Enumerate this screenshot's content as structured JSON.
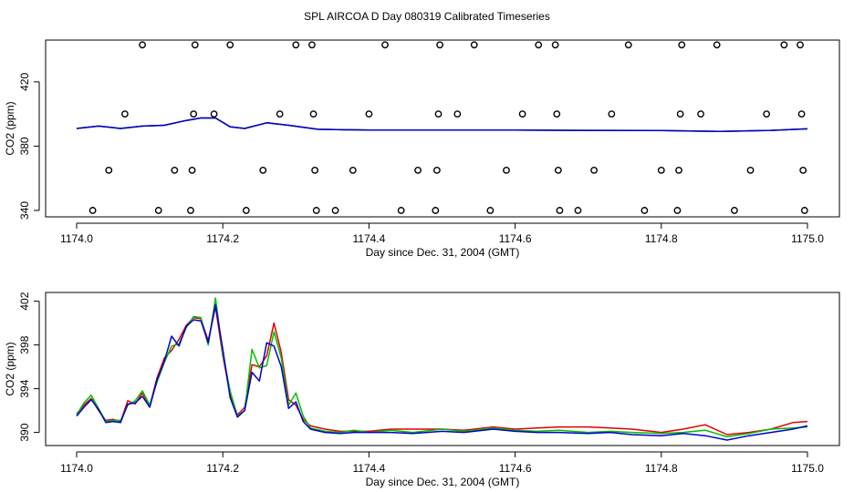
{
  "title": "SPL AIRCOA D  Day 080319  Calibrated Timeseries",
  "chart_data": [
    {
      "type": "scatter+line",
      "xlabel": "Day since Dec. 31, 2004 (GMT)",
      "ylabel": "CO2 (ppm)",
      "xlim": [
        1174.0,
        1175.0
      ],
      "ylim": [
        336,
        446
      ],
      "x_ticks": [
        1174.0,
        1174.2,
        1174.4,
        1174.6,
        1174.8,
        1175.0
      ],
      "x_tick_labels": [
        "1174.0",
        "1174.2",
        "1174.4",
        "1174.6",
        "1174.8",
        "1175.0"
      ],
      "y_ticks": [
        340,
        380,
        420
      ],
      "y_tick_labels": [
        "340",
        "380",
        "420"
      ],
      "calibration_points": [
        {
          "x": 1174.022,
          "y": 340
        },
        {
          "x": 1174.044,
          "y": 365
        },
        {
          "x": 1174.066,
          "y": 400
        },
        {
          "x": 1174.09,
          "y": 443
        },
        {
          "x": 1174.112,
          "y": 340
        },
        {
          "x": 1174.134,
          "y": 365
        },
        {
          "x": 1174.156,
          "y": 340
        },
        {
          "x": 1174.158,
          "y": 365
        },
        {
          "x": 1174.16,
          "y": 400
        },
        {
          "x": 1174.162,
          "y": 443
        },
        {
          "x": 1174.188,
          "y": 400
        },
        {
          "x": 1174.21,
          "y": 443
        },
        {
          "x": 1174.232,
          "y": 340
        },
        {
          "x": 1174.255,
          "y": 365
        },
        {
          "x": 1174.278,
          "y": 400
        },
        {
          "x": 1174.3,
          "y": 443
        },
        {
          "x": 1174.322,
          "y": 443
        },
        {
          "x": 1174.324,
          "y": 400
        },
        {
          "x": 1174.326,
          "y": 365
        },
        {
          "x": 1174.328,
          "y": 340
        },
        {
          "x": 1174.354,
          "y": 340
        },
        {
          "x": 1174.378,
          "y": 365
        },
        {
          "x": 1174.4,
          "y": 400
        },
        {
          "x": 1174.422,
          "y": 443
        },
        {
          "x": 1174.444,
          "y": 340
        },
        {
          "x": 1174.467,
          "y": 365
        },
        {
          "x": 1174.491,
          "y": 340
        },
        {
          "x": 1174.493,
          "y": 365
        },
        {
          "x": 1174.495,
          "y": 400
        },
        {
          "x": 1174.497,
          "y": 443
        },
        {
          "x": 1174.521,
          "y": 400
        },
        {
          "x": 1174.544,
          "y": 443
        },
        {
          "x": 1174.566,
          "y": 340
        },
        {
          "x": 1174.588,
          "y": 365
        },
        {
          "x": 1174.61,
          "y": 400
        },
        {
          "x": 1174.632,
          "y": 443
        },
        {
          "x": 1174.655,
          "y": 443
        },
        {
          "x": 1174.657,
          "y": 400
        },
        {
          "x": 1174.659,
          "y": 365
        },
        {
          "x": 1174.661,
          "y": 340
        },
        {
          "x": 1174.686,
          "y": 340
        },
        {
          "x": 1174.708,
          "y": 365
        },
        {
          "x": 1174.732,
          "y": 400
        },
        {
          "x": 1174.755,
          "y": 443
        },
        {
          "x": 1174.777,
          "y": 340
        },
        {
          "x": 1174.8,
          "y": 365
        },
        {
          "x": 1174.822,
          "y": 340
        },
        {
          "x": 1174.824,
          "y": 365
        },
        {
          "x": 1174.826,
          "y": 400
        },
        {
          "x": 1174.828,
          "y": 443
        },
        {
          "x": 1174.854,
          "y": 400
        },
        {
          "x": 1174.876,
          "y": 443
        },
        {
          "x": 1174.9,
          "y": 340
        },
        {
          "x": 1174.922,
          "y": 365
        },
        {
          "x": 1174.944,
          "y": 400
        },
        {
          "x": 1174.968,
          "y": 443
        },
        {
          "x": 1174.99,
          "y": 443
        },
        {
          "x": 1174.992,
          "y": 400
        },
        {
          "x": 1174.994,
          "y": 365
        },
        {
          "x": 1174.996,
          "y": 340
        }
      ],
      "series_x": [
        1174.0,
        1174.03,
        1174.06,
        1174.09,
        1174.12,
        1174.15,
        1174.17,
        1174.19,
        1174.21,
        1174.23,
        1174.26,
        1174.29,
        1174.33,
        1174.4,
        1174.5,
        1174.6,
        1174.7,
        1174.8,
        1174.88,
        1174.95,
        1175.0
      ],
      "series": [
        {
          "color": "#e00000",
          "values": [
            391,
            392.5,
            391,
            392.5,
            393,
            396,
            397.5,
            397.5,
            392,
            391,
            394.5,
            393,
            390.5,
            390,
            390,
            390,
            389.8,
            389.7,
            389.2,
            389.8,
            390.8
          ]
        },
        {
          "color": "#00c000",
          "values": [
            391,
            392.5,
            391,
            392.5,
            393,
            396,
            397.5,
            397.5,
            392,
            391,
            394.5,
            393,
            390.5,
            390,
            390,
            390,
            389.8,
            389.7,
            389.2,
            389.8,
            390.8
          ]
        },
        {
          "color": "#0000d0",
          "values": [
            391,
            392.5,
            391,
            392.5,
            393,
            396,
            397.5,
            397.5,
            392,
            391,
            394.5,
            393,
            390.5,
            390,
            390,
            390,
            389.8,
            389.7,
            389.2,
            389.8,
            390.8
          ]
        }
      ]
    },
    {
      "type": "line",
      "xlabel": "Day since Dec. 31, 2004 (GMT)",
      "ylabel": "CO2 (ppm)",
      "xlim": [
        1174.0,
        1175.0
      ],
      "ylim": [
        388.8,
        402.8
      ],
      "x_ticks": [
        1174.0,
        1174.2,
        1174.4,
        1174.6,
        1174.8,
        1175.0
      ],
      "x_tick_labels": [
        "1174.0",
        "1174.2",
        "1174.4",
        "1174.6",
        "1174.8",
        "1175.0"
      ],
      "y_ticks": [
        390,
        394,
        398,
        402
      ],
      "y_tick_labels": [
        "390",
        "394",
        "398",
        "402"
      ],
      "x": [
        1174.0,
        1174.01,
        1174.02,
        1174.03,
        1174.04,
        1174.05,
        1174.06,
        1174.07,
        1174.08,
        1174.09,
        1174.1,
        1174.11,
        1174.12,
        1174.13,
        1174.14,
        1174.15,
        1174.16,
        1174.17,
        1174.18,
        1174.19,
        1174.2,
        1174.21,
        1174.22,
        1174.23,
        1174.24,
        1174.25,
        1174.26,
        1174.27,
        1174.28,
        1174.29,
        1174.3,
        1174.31,
        1174.32,
        1174.34,
        1174.36,
        1174.38,
        1174.4,
        1174.43,
        1174.46,
        1174.5,
        1174.53,
        1174.57,
        1174.6,
        1174.63,
        1174.66,
        1174.7,
        1174.73,
        1174.76,
        1174.8,
        1174.83,
        1174.86,
        1174.89,
        1174.92,
        1174.95,
        1174.98,
        1175.0
      ],
      "series": [
        {
          "color": "#e00000",
          "values": [
            391.7,
            392.5,
            393.1,
            392.0,
            391.1,
            391.2,
            391.0,
            392.9,
            392.6,
            393.6,
            392.4,
            395.0,
            396.8,
            397.5,
            398.5,
            399.8,
            400.5,
            400.4,
            398.4,
            401.5,
            397.0,
            393.5,
            391.6,
            392.3,
            396.2,
            396.0,
            397.0,
            400.0,
            397.3,
            393.0,
            392.5,
            391.2,
            390.6,
            390.3,
            390.1,
            390.1,
            390.1,
            390.3,
            390.3,
            390.3,
            390.2,
            390.5,
            390.3,
            390.4,
            390.5,
            390.5,
            390.4,
            390.3,
            390.0,
            390.3,
            390.7,
            389.8,
            390.0,
            390.3,
            390.9,
            391.0
          ]
        },
        {
          "color": "#00c000",
          "values": [
            391.6,
            392.7,
            393.4,
            392.2,
            391.0,
            391.1,
            391.1,
            392.5,
            392.9,
            393.8,
            392.5,
            394.6,
            396.4,
            397.9,
            398.1,
            399.6,
            400.6,
            400.5,
            398.0,
            402.3,
            397.2,
            393.8,
            391.5,
            392.0,
            397.6,
            395.9,
            396.1,
            399.2,
            396.8,
            392.5,
            393.6,
            391.5,
            390.4,
            390.1,
            390.0,
            390.2,
            390.0,
            390.2,
            390.0,
            390.3,
            390.1,
            390.4,
            390.2,
            390.1,
            390.2,
            390.0,
            390.1,
            390.0,
            389.9,
            390.0,
            390.2,
            389.6,
            389.9,
            390.3,
            390.4,
            390.5
          ]
        },
        {
          "color": "#0000d0",
          "values": [
            391.5,
            392.3,
            393.0,
            392.1,
            390.9,
            391.0,
            390.9,
            392.6,
            392.7,
            393.3,
            392.3,
            394.8,
            396.5,
            398.8,
            397.9,
            399.7,
            400.3,
            400.2,
            398.2,
            401.7,
            397.6,
            393.2,
            391.4,
            392.0,
            395.5,
            394.7,
            398.2,
            397.9,
            396.0,
            392.2,
            392.8,
            391.0,
            390.3,
            390.0,
            389.9,
            390.0,
            390.0,
            390.0,
            389.9,
            390.1,
            390.0,
            390.3,
            390.1,
            390.0,
            390.0,
            389.9,
            390.0,
            389.8,
            389.7,
            389.9,
            389.7,
            389.3,
            389.7,
            390.0,
            390.3,
            390.6
          ]
        }
      ]
    }
  ]
}
